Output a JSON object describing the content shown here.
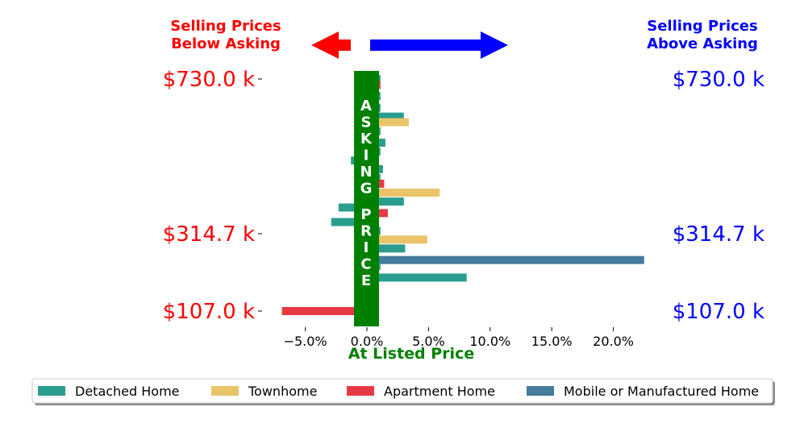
{
  "colors": {
    "below": "#ff0000",
    "above": "#0000ff",
    "asking": "#008000",
    "detached": "#2a9d8f",
    "townhome": "#e9c46a",
    "apartment": "#e63946",
    "mobile": "#457b9d"
  },
  "header": {
    "below_label_line1": "Selling Prices",
    "below_label_line2": "Below Asking",
    "above_label_line1": "Selling Prices",
    "above_label_line2": "Above Asking"
  },
  "asking_label": "ASKING PRICE",
  "x_axis_label": "At Listed Price",
  "legend": [
    {
      "name": "Detached Home",
      "color": "#2a9d8f"
    },
    {
      "name": "Townhome",
      "color": "#e9c46a"
    },
    {
      "name": "Apartment Home",
      "color": "#e63946"
    },
    {
      "name": "Mobile or Manufactured Home",
      "color": "#457b9d"
    }
  ],
  "chart_data": {
    "type": "bar",
    "orientation": "horizontal",
    "x_axis": {
      "ticks": [
        -5,
        0,
        5,
        10,
        15,
        20
      ],
      "tick_labels": [
        "−5.0%",
        "0.0%",
        "5.0%",
        "10.0%",
        "15.0%",
        "20.0%"
      ],
      "xlim": [
        -7.8,
        22.5
      ]
    },
    "y_axis": {
      "left_tick_labels": [
        "$730.0 k",
        "$314.7 k",
        "$107.0 k"
      ],
      "right_tick_labels": [
        "$730.0 k",
        "$314.7 k",
        "$107.0 k"
      ],
      "tick_positions": [
        730.0,
        314.7,
        107.0
      ]
    },
    "grid": false,
    "legend_position": "bottom",
    "bars": [
      {
        "series": "Detached Home",
        "y": 730.0,
        "value": 1.1
      },
      {
        "series": "Apartment Home",
        "y": 714.0,
        "value": 1.1
      },
      {
        "series": "Detached Home",
        "y": 684.0,
        "value": 1.1
      },
      {
        "series": "Detached Home",
        "y": 653.0,
        "value": 1.1
      },
      {
        "series": "Detached Home",
        "y": 629.0,
        "value": 3.0
      },
      {
        "series": "Townhome",
        "y": 614.0,
        "value": 3.4
      },
      {
        "series": "Detached Home",
        "y": 590.0,
        "value": 1.1
      },
      {
        "series": "Detached Home",
        "y": 559.0,
        "value": 1.5
      },
      {
        "series": "Detached Home",
        "y": 535.0,
        "value": 1.1
      },
      {
        "series": "Detached Home",
        "y": 511.0,
        "value": -1.3
      },
      {
        "series": "Detached Home",
        "y": 488.0,
        "value": 1.3
      },
      {
        "series": "Detached Home",
        "y": 464.0,
        "value": 1.1
      },
      {
        "series": "Apartment Home",
        "y": 449.0,
        "value": 1.4
      },
      {
        "series": "Townhome",
        "y": 425.0,
        "value": 5.9
      },
      {
        "series": "Detached Home",
        "y": 401.0,
        "value": 3.0
      },
      {
        "series": "Detached Home",
        "y": 385.0,
        "value": -2.3
      },
      {
        "series": "Apartment Home",
        "y": 370.0,
        "value": 1.7
      },
      {
        "series": "Detached Home",
        "y": 346.0,
        "value": -2.9
      },
      {
        "series": "Detached Home",
        "y": 322.0,
        "value": 1.1
      },
      {
        "series": "Townhome",
        "y": 299.0,
        "value": 4.9
      },
      {
        "series": "Detached Home",
        "y": 275.0,
        "value": 3.1
      },
      {
        "series": "Mobile or Manufactured Home",
        "y": 244.0,
        "value": 22.5
      },
      {
        "series": "Detached Home",
        "y": 228.0,
        "value": 1.1
      },
      {
        "series": "Detached Home",
        "y": 197.0,
        "value": 8.1
      },
      {
        "series": "Apartment Home",
        "y": 107.0,
        "value": -6.9
      }
    ]
  }
}
